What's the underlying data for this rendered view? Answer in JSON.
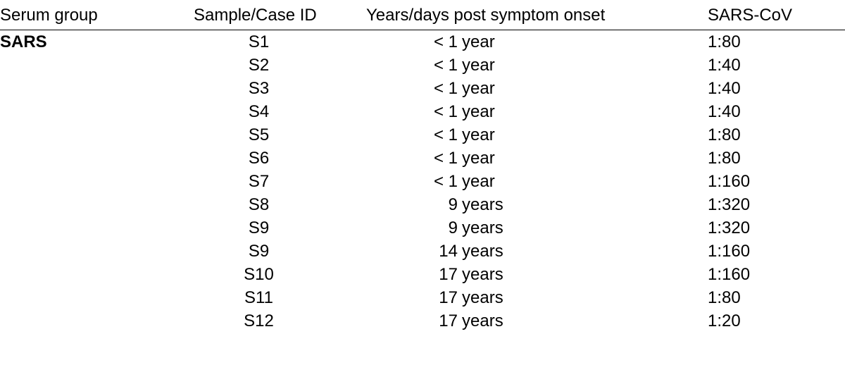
{
  "table": {
    "columns": {
      "serum_group": "Serum group",
      "sample_id": "Sample/Case ID",
      "years_post": "Years/days post symptom onset",
      "sars_cov": "SARS-CoV"
    },
    "group_label": "SARS",
    "rows": [
      {
        "id": "S1",
        "years_num": "< 1",
        "years_unit": "year",
        "sars": "1:80"
      },
      {
        "id": "S2",
        "years_num": "< 1",
        "years_unit": "year",
        "sars": "1:40"
      },
      {
        "id": "S3",
        "years_num": "< 1",
        "years_unit": "year",
        "sars": "1:40"
      },
      {
        "id": "S4",
        "years_num": "< 1",
        "years_unit": "year",
        "sars": "1:40"
      },
      {
        "id": "S5",
        "years_num": "< 1",
        "years_unit": "year",
        "sars": "1:80"
      },
      {
        "id": "S6",
        "years_num": "< 1",
        "years_unit": "year",
        "sars": "1:80"
      },
      {
        "id": "S7",
        "years_num": "< 1",
        "years_unit": "year",
        "sars": "1:160"
      },
      {
        "id": "S8",
        "years_num": "9",
        "years_unit": "years",
        "sars": "1:320"
      },
      {
        "id": "S9",
        "years_num": "9",
        "years_unit": "years",
        "sars": "1:320"
      },
      {
        "id": "S9",
        "years_num": "14",
        "years_unit": "years",
        "sars": "1:160"
      },
      {
        "id": "S10",
        "years_num": "17",
        "years_unit": "years",
        "sars": "1:160"
      },
      {
        "id": "S11",
        "years_num": "17",
        "years_unit": "years",
        "sars": "1:80"
      },
      {
        "id": "S12",
        "years_num": "17",
        "years_unit": "years",
        "sars": "1:20"
      }
    ]
  }
}
